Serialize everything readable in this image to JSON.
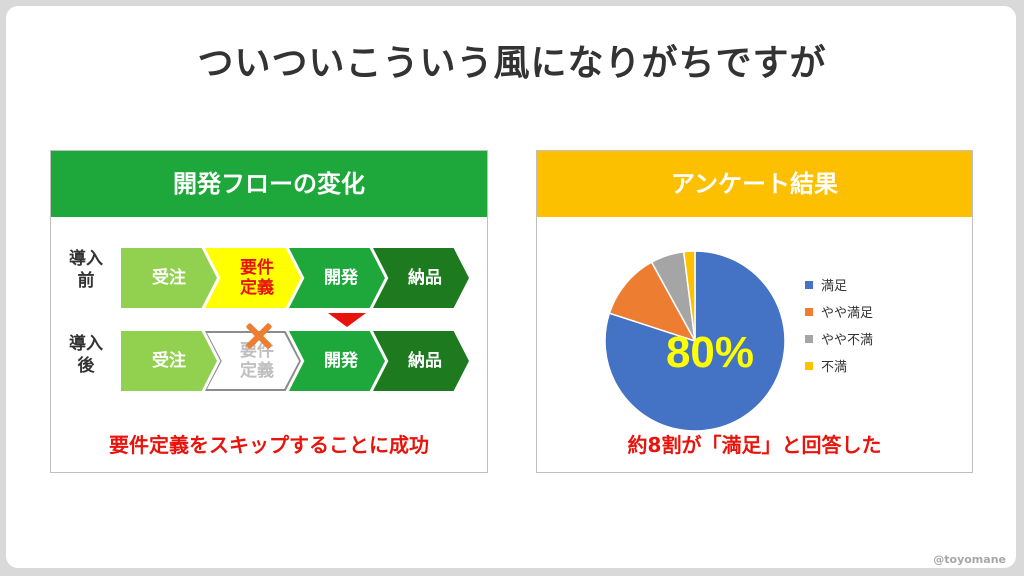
{
  "slide_title": "ついついこういう風になりがちですが",
  "left_panel": {
    "header": "開発フローの変化",
    "header_color": "#1ea83c",
    "before_label": "導入\n前",
    "after_label": "導入\n後",
    "before_steps": [
      "受注",
      "要件\n定義",
      "開発",
      "納品"
    ],
    "after_steps": [
      "受注",
      "要件\n定義",
      "開発",
      "納品"
    ],
    "caption": "要件定義をスキップすることに成功"
  },
  "right_panel": {
    "header": "アンケート結果",
    "header_color": "#fcc000",
    "caption": "約8割が「満足」と回答した",
    "big_label": "80%"
  },
  "chart_data": {
    "type": "pie",
    "categories": [
      "満足",
      "やや満足",
      "やや不満",
      "不満"
    ],
    "values": [
      80,
      12,
      6,
      2
    ],
    "colors": [
      "#4472c4",
      "#ed7d31",
      "#a5a5a5",
      "#ffc000"
    ],
    "legend_position": "right"
  },
  "footer": "@toyomane"
}
